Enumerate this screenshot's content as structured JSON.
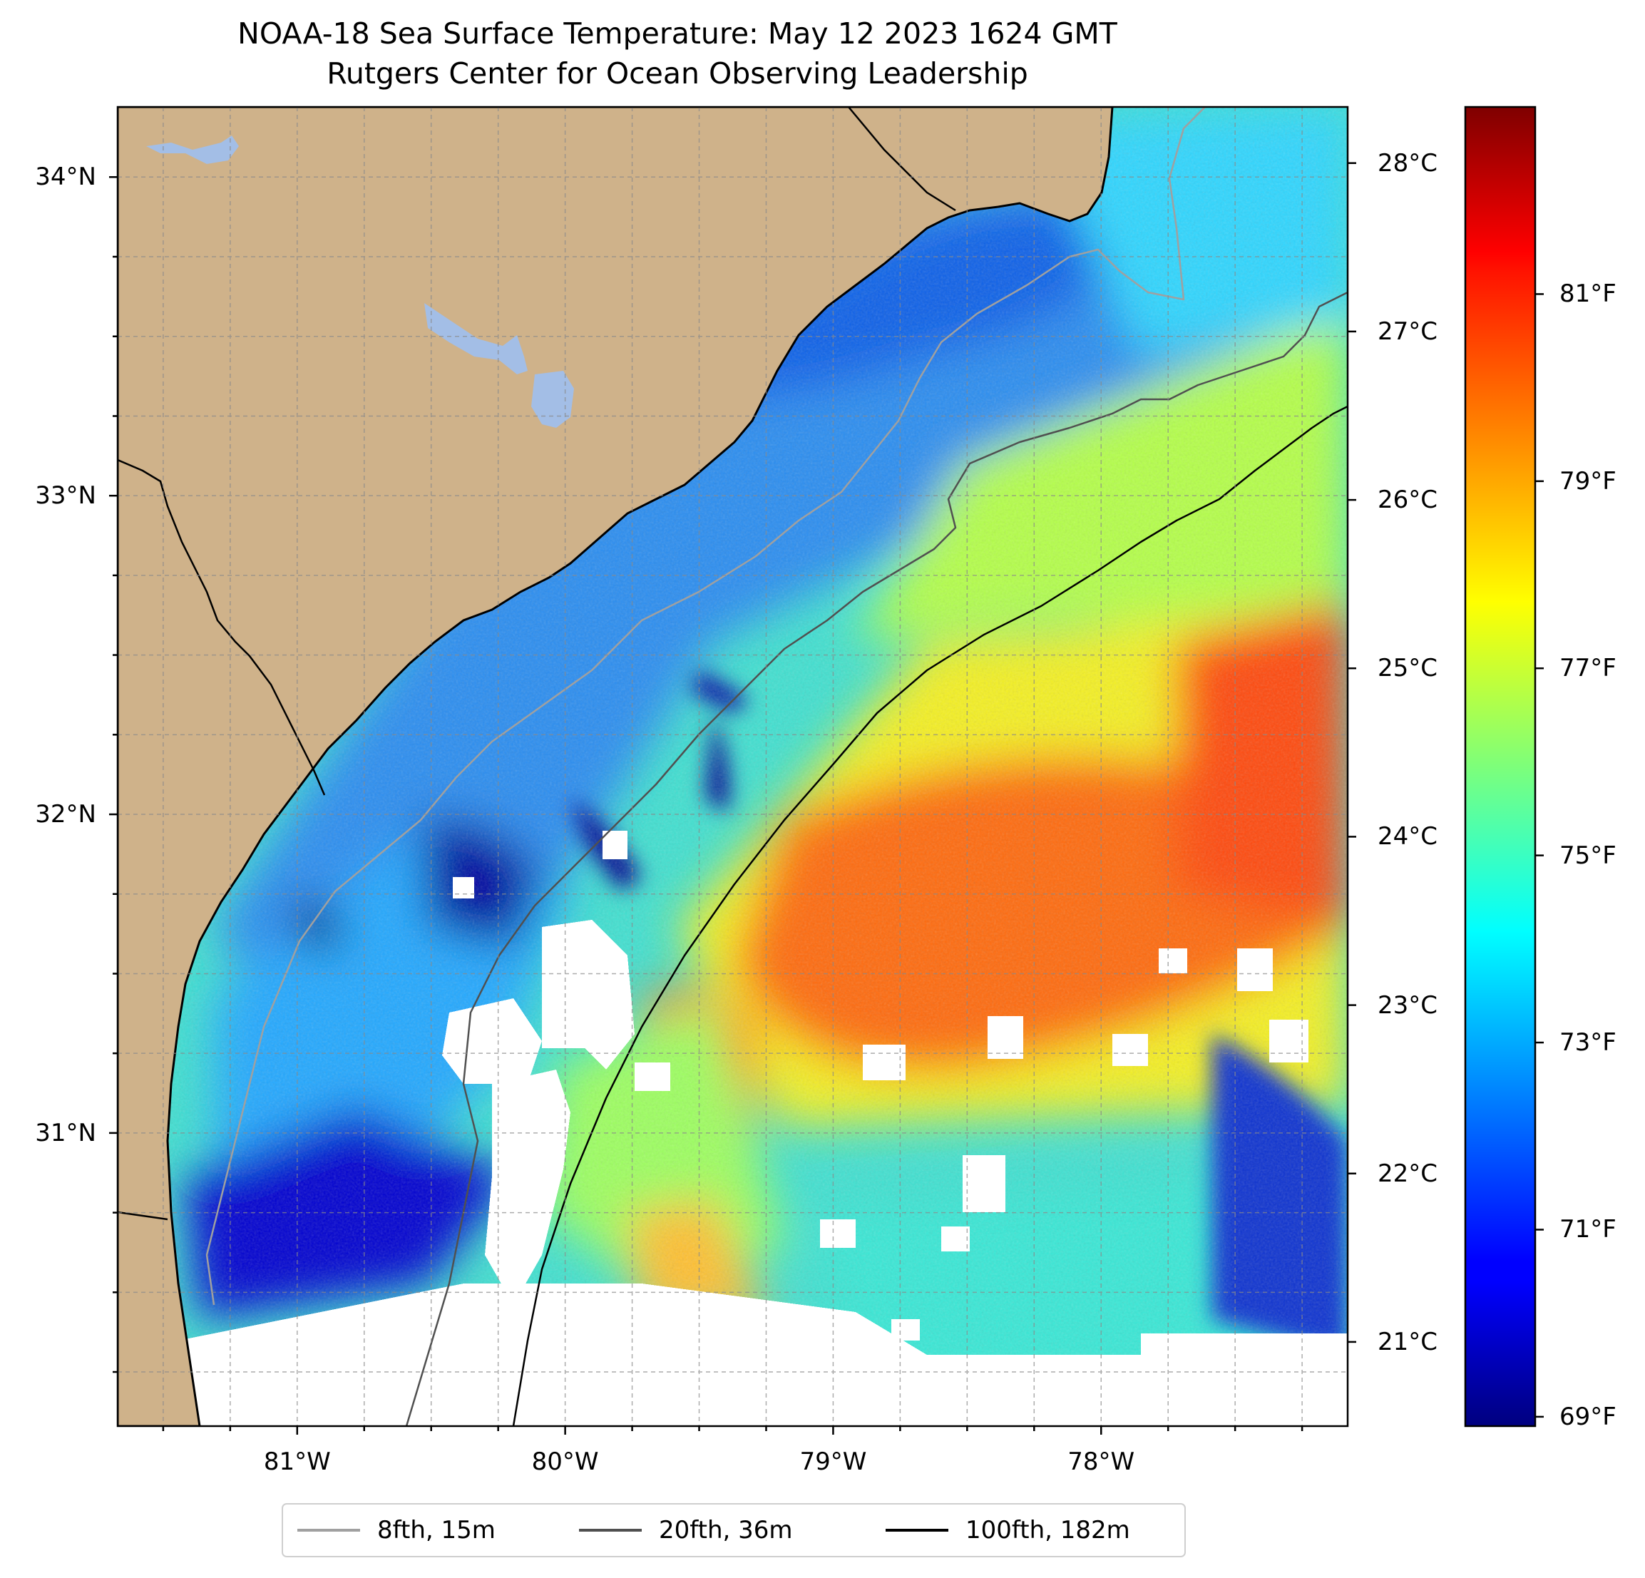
{
  "title": {
    "line1": "NOAA-18 Sea Surface Temperature: May 12 2023 1624 GMT",
    "line2": "Rutgers Center for Ocean Observing Leadership"
  },
  "map": {
    "region": "South Carolina / Georgia coast, western North Atlantic",
    "lon_range": [
      -81.67,
      -77.08
    ],
    "lat_range": [
      30.08,
      34.22
    ],
    "lon_ticks": [
      {
        "value": -81,
        "label": "81°W"
      },
      {
        "value": -80,
        "label": "80°W"
      },
      {
        "value": -79,
        "label": "79°W"
      },
      {
        "value": -78,
        "label": "78°W"
      }
    ],
    "lat_ticks": [
      {
        "value": 34,
        "label": "34°N"
      },
      {
        "value": 33,
        "label": "33°N"
      },
      {
        "value": 32,
        "label": "32°N"
      },
      {
        "value": 31,
        "label": "31°N"
      }
    ],
    "gridlines": "dashed, every 0.25°",
    "land_color": "#cfb28a",
    "lake_color": "#a3bee6",
    "no_data_color": "#ffffff",
    "sst_field": "pixelated satellite SST, ~70°F (dark blue) near coast to ~81°F (red) over Gulf Stream offshore, with white cloud gaps"
  },
  "colorbar": {
    "colormap": "jet",
    "range_f": [
      68.9,
      83.0
    ],
    "celsius_ticks": [
      {
        "value": 28,
        "label": "28°C"
      },
      {
        "value": 27,
        "label": "27°C"
      },
      {
        "value": 26,
        "label": "26°C"
      },
      {
        "value": 25,
        "label": "25°C"
      },
      {
        "value": 24,
        "label": "24°C"
      },
      {
        "value": 23,
        "label": "23°C"
      },
      {
        "value": 22,
        "label": "22°C"
      },
      {
        "value": 21,
        "label": "21°C"
      }
    ],
    "fahrenheit_ticks": [
      {
        "value": 81,
        "label": "81°F"
      },
      {
        "value": 79,
        "label": "79°F"
      },
      {
        "value": 77,
        "label": "77°F"
      },
      {
        "value": 75,
        "label": "75°F"
      },
      {
        "value": 73,
        "label": "73°F"
      },
      {
        "value": 71,
        "label": "71°F"
      },
      {
        "value": 69,
        "label": "69°F"
      }
    ]
  },
  "legend": {
    "items": [
      {
        "label": "8fth, 15m",
        "color": "#a0a0a0"
      },
      {
        "label": "20fth, 36m",
        "color": "#505050"
      },
      {
        "label": "100fth, 182m",
        "color": "#000000"
      }
    ]
  }
}
